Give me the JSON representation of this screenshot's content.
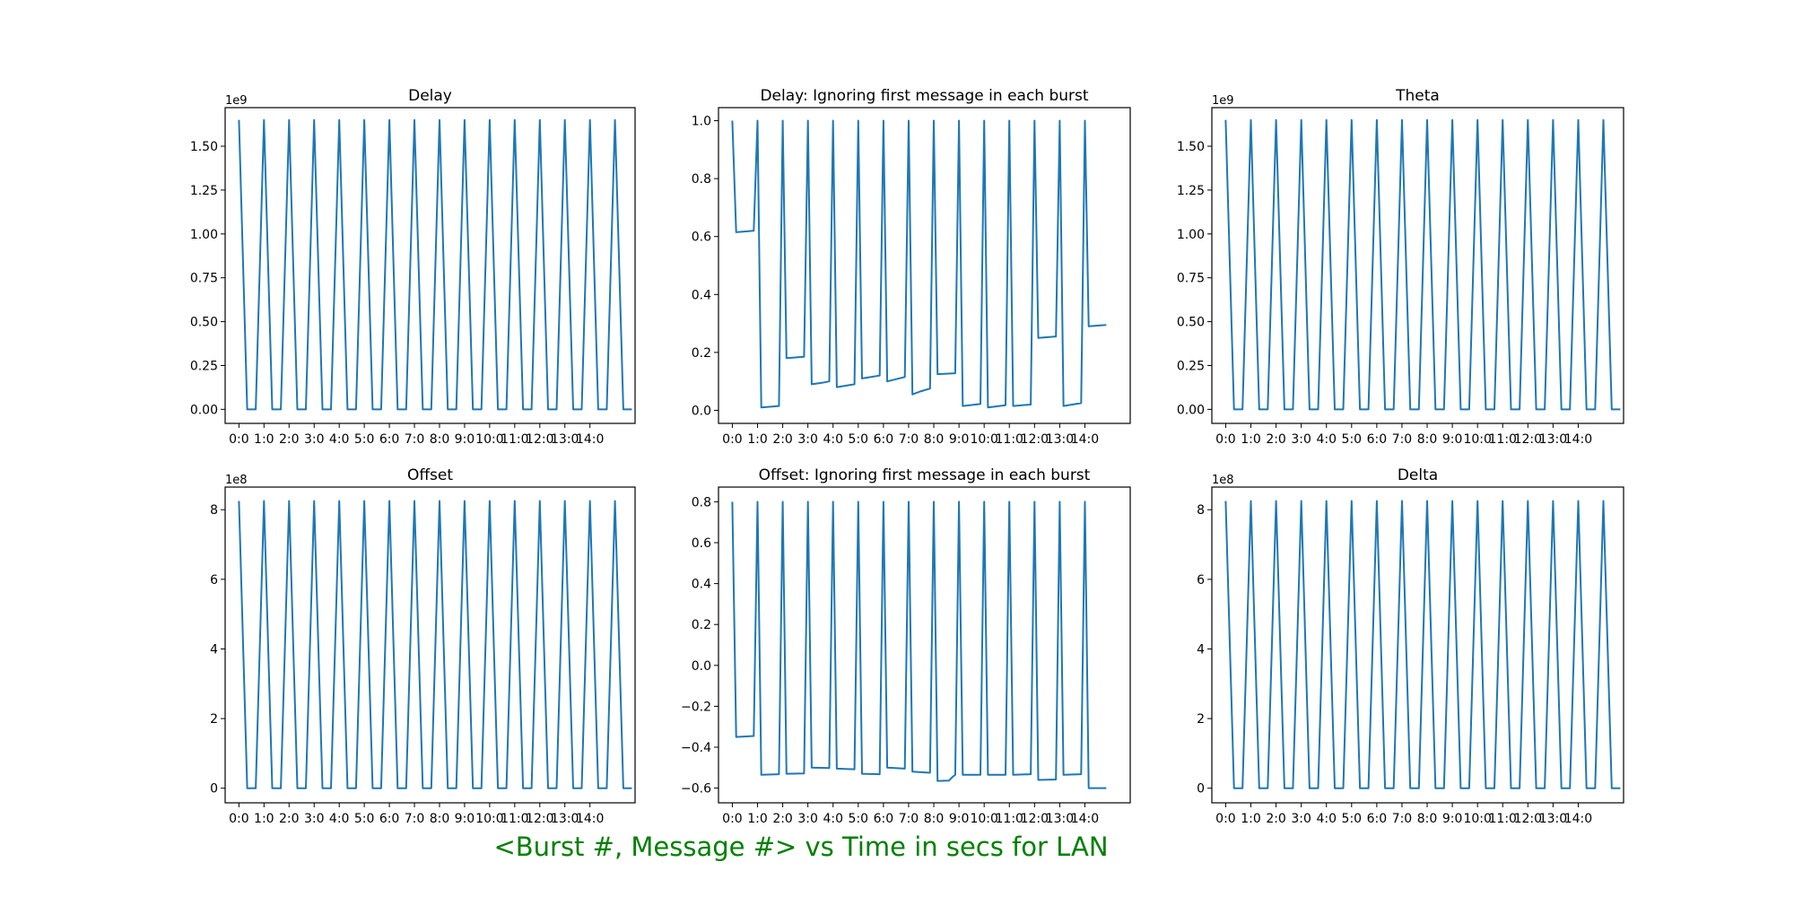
{
  "figure": {
    "suptitle": "<Burst #, Message #> vs Time in secs for LAN",
    "suptitle_color": "#008000",
    "line_color": "#1f77b4"
  },
  "chart_data": [
    {
      "type": "line",
      "title": "Delay",
      "offset_text": "1e9",
      "x_tick_labels": [
        "0:0",
        "1:0",
        "2:0",
        "3:0",
        "4:0",
        "5:0",
        "6:0",
        "7:0",
        "8:0",
        "9:0",
        "10:0",
        "11:0",
        "12:0",
        "13:0",
        "14:0"
      ],
      "y_ticks": [
        0.0,
        0.25,
        0.5,
        0.75,
        1.0,
        1.25,
        1.5
      ],
      "y_tick_labels": [
        "0.00",
        "0.25",
        "0.50",
        "0.75",
        "1.00",
        "1.25",
        "1.50"
      ],
      "ylim": [
        -0.08,
        1.72
      ],
      "xlim": [
        -0.55,
        15.8
      ],
      "x": [
        0,
        0.33,
        0.67,
        1,
        1.33,
        1.67,
        2,
        2.33,
        2.67,
        3,
        3.33,
        3.67,
        4,
        4.33,
        4.67,
        5,
        5.33,
        5.67,
        6,
        6.33,
        6.67,
        7,
        7.33,
        7.67,
        8,
        8.33,
        8.67,
        9,
        9.33,
        9.67,
        10,
        10.33,
        10.67,
        11,
        11.33,
        11.67,
        12,
        12.33,
        12.67,
        13,
        13.33,
        13.67,
        14,
        14.33,
        14.67,
        15,
        15.33,
        15.67
      ],
      "y": [
        1.65,
        0,
        0,
        1.65,
        0,
        0,
        1.65,
        0,
        0,
        1.65,
        0,
        0,
        1.65,
        0,
        0,
        1.65,
        0,
        0,
        1.65,
        0,
        0,
        1.65,
        0,
        0,
        1.65,
        0,
        0,
        1.65,
        0,
        0,
        1.65,
        0,
        0,
        1.65,
        0,
        0,
        1.65,
        0,
        0,
        1.65,
        0,
        0,
        1.65,
        0,
        0,
        1.65,
        0,
        0
      ]
    },
    {
      "type": "line",
      "title": "Delay: Ignoring first message in each burst",
      "offset_text": "",
      "x_tick_labels": [
        "0:0",
        "1:0",
        "2:0",
        "3:0",
        "4:0",
        "5:0",
        "6:0",
        "7:0",
        "8:0",
        "9:0",
        "10:0",
        "11:0",
        "12:0",
        "13:0",
        "14:0"
      ],
      "y_ticks": [
        0.0,
        0.2,
        0.4,
        0.6,
        0.8,
        1.0
      ],
      "y_tick_labels": [
        "0.0",
        "0.2",
        "0.4",
        "0.6",
        "0.8",
        "1.0"
      ],
      "ylim": [
        -0.045,
        1.045
      ],
      "xlim": [
        -0.55,
        15.8
      ],
      "x": [
        0,
        0.15,
        0.85,
        1,
        1.15,
        1.85,
        2,
        2.15,
        2.85,
        3,
        3.15,
        3.55,
        3.85,
        4,
        4.15,
        4.85,
        5,
        5.15,
        5.85,
        6,
        6.15,
        6.85,
        7,
        7.15,
        7.45,
        7.85,
        8,
        8.15,
        8.85,
        9,
        9.15,
        9.85,
        10,
        10.15,
        10.85,
        11,
        11.15,
        11.85,
        12,
        12.15,
        12.85,
        13,
        13.15,
        13.85,
        14,
        14.15,
        14.85
      ],
      "y": [
        1.0,
        0.615,
        0.62,
        1.0,
        0.01,
        0.015,
        1.0,
        0.18,
        0.185,
        1.0,
        0.09,
        0.095,
        0.1,
        1.0,
        0.08,
        0.09,
        1.0,
        0.11,
        0.12,
        1.0,
        0.1,
        0.115,
        1.0,
        0.055,
        0.065,
        0.075,
        1.0,
        0.125,
        0.128,
        1.0,
        0.015,
        0.022,
        1.0,
        0.01,
        0.018,
        1.0,
        0.015,
        0.02,
        1.0,
        0.25,
        0.255,
        1.0,
        0.015,
        0.025,
        1.0,
        0.29,
        0.295
      ]
    },
    {
      "type": "line",
      "title": "Theta",
      "offset_text": "1e9",
      "x_tick_labels": [
        "0:0",
        "1:0",
        "2:0",
        "3:0",
        "4:0",
        "5:0",
        "6:0",
        "7:0",
        "8:0",
        "9:0",
        "10:0",
        "11:0",
        "12:0",
        "13:0",
        "14:0"
      ],
      "y_ticks": [
        0.0,
        0.25,
        0.5,
        0.75,
        1.0,
        1.25,
        1.5
      ],
      "y_tick_labels": [
        "0.00",
        "0.25",
        "0.50",
        "0.75",
        "1.00",
        "1.25",
        "1.50"
      ],
      "ylim": [
        -0.08,
        1.72
      ],
      "xlim": [
        -0.55,
        15.8
      ],
      "x": [
        0,
        0.33,
        0.67,
        1,
        1.33,
        1.67,
        2,
        2.33,
        2.67,
        3,
        3.33,
        3.67,
        4,
        4.33,
        4.67,
        5,
        5.33,
        5.67,
        6,
        6.33,
        6.67,
        7,
        7.33,
        7.67,
        8,
        8.33,
        8.67,
        9,
        9.33,
        9.67,
        10,
        10.33,
        10.67,
        11,
        11.33,
        11.67,
        12,
        12.33,
        12.67,
        13,
        13.33,
        13.67,
        14,
        14.33,
        14.67,
        15,
        15.33,
        15.67
      ],
      "y": [
        1.65,
        0,
        0,
        1.65,
        0,
        0,
        1.65,
        0,
        0,
        1.65,
        0,
        0,
        1.65,
        0,
        0,
        1.65,
        0,
        0,
        1.65,
        0,
        0,
        1.65,
        0,
        0,
        1.65,
        0,
        0,
        1.65,
        0,
        0,
        1.65,
        0,
        0,
        1.65,
        0,
        0,
        1.65,
        0,
        0,
        1.65,
        0,
        0,
        1.65,
        0,
        0,
        1.65,
        0,
        0
      ]
    },
    {
      "type": "line",
      "title": "Offset",
      "offset_text": "1e8",
      "x_tick_labels": [
        "0:0",
        "1:0",
        "2:0",
        "3:0",
        "4:0",
        "5:0",
        "6:0",
        "7:0",
        "8:0",
        "9:0",
        "10:0",
        "11:0",
        "12:0",
        "13:0",
        "14:0"
      ],
      "y_ticks": [
        0,
        2,
        4,
        6,
        8
      ],
      "y_tick_labels": [
        "0",
        "2",
        "4",
        "6",
        "8"
      ],
      "ylim": [
        -0.42,
        8.65
      ],
      "xlim": [
        -0.55,
        15.8
      ],
      "x": [
        0,
        0.33,
        0.67,
        1,
        1.33,
        1.67,
        2,
        2.33,
        2.67,
        3,
        3.33,
        3.67,
        4,
        4.33,
        4.67,
        5,
        5.33,
        5.67,
        6,
        6.33,
        6.67,
        7,
        7.33,
        7.67,
        8,
        8.33,
        8.67,
        9,
        9.33,
        9.67,
        10,
        10.33,
        10.67,
        11,
        11.33,
        11.67,
        12,
        12.33,
        12.67,
        13,
        13.33,
        13.67,
        14,
        14.33,
        14.67,
        15,
        15.33,
        15.67
      ],
      "y": [
        8.25,
        0,
        0,
        8.25,
        0,
        0,
        8.25,
        0,
        0,
        8.25,
        0,
        0,
        8.25,
        0,
        0,
        8.25,
        0,
        0,
        8.25,
        0,
        0,
        8.25,
        0,
        0,
        8.25,
        0,
        0,
        8.25,
        0,
        0,
        8.25,
        0,
        0,
        8.25,
        0,
        0,
        8.25,
        0,
        0,
        8.25,
        0,
        0,
        8.25,
        0,
        0,
        8.25,
        0,
        0
      ]
    },
    {
      "type": "line",
      "title": "Offset: Ignoring first message in each burst",
      "offset_text": "",
      "x_tick_labels": [
        "0:0",
        "1:0",
        "2:0",
        "3:0",
        "4:0",
        "5:0",
        "6:0",
        "7:0",
        "8:0",
        "9:0",
        "10:0",
        "11:0",
        "12:0",
        "13:0",
        "14:0"
      ],
      "y_ticks": [
        -0.6,
        -0.4,
        -0.2,
        0.0,
        0.2,
        0.4,
        0.6,
        0.8
      ],
      "y_tick_labels": [
        "−0.6",
        "−0.4",
        "−0.2",
        "0.0",
        "0.2",
        "0.4",
        "0.6",
        "0.8"
      ],
      "ylim": [
        -0.672,
        0.872
      ],
      "xlim": [
        -0.55,
        15.8
      ],
      "x": [
        0,
        0.15,
        0.85,
        1,
        1.15,
        1.85,
        2,
        2.15,
        2.85,
        3,
        3.15,
        3.85,
        4,
        4.15,
        4.85,
        5,
        5.15,
        5.85,
        6,
        6.15,
        6.85,
        7,
        7.15,
        7.85,
        8,
        8.15,
        8.6,
        8.75,
        8.85,
        9,
        9.15,
        9.85,
        10,
        10.15,
        10.85,
        11,
        11.15,
        11.85,
        12,
        12.15,
        12.85,
        13,
        13.15,
        13.85,
        14,
        14.15,
        14.85
      ],
      "y": [
        0.8,
        -0.35,
        -0.345,
        0.8,
        -0.535,
        -0.532,
        0.8,
        -0.53,
        -0.528,
        0.8,
        -0.5,
        -0.502,
        0.8,
        -0.505,
        -0.508,
        0.8,
        -0.53,
        -0.532,
        0.8,
        -0.5,
        -0.505,
        0.8,
        -0.52,
        -0.525,
        0.8,
        -0.565,
        -0.563,
        -0.545,
        -0.535,
        0.8,
        -0.535,
        -0.535,
        0.8,
        -0.535,
        -0.535,
        0.8,
        -0.535,
        -0.532,
        0.8,
        -0.56,
        -0.558,
        0.8,
        -0.535,
        -0.532,
        0.8,
        -0.6,
        -0.6
      ]
    },
    {
      "type": "line",
      "title": "Delta",
      "offset_text": "1e8",
      "x_tick_labels": [
        "0:0",
        "1:0",
        "2:0",
        "3:0",
        "4:0",
        "5:0",
        "6:0",
        "7:0",
        "8:0",
        "9:0",
        "10:0",
        "11:0",
        "12:0",
        "13:0",
        "14:0"
      ],
      "y_ticks": [
        0,
        2,
        4,
        6,
        8
      ],
      "y_tick_labels": [
        "0",
        "2",
        "4",
        "6",
        "8"
      ],
      "ylim": [
        -0.42,
        8.65
      ],
      "xlim": [
        -0.55,
        15.8
      ],
      "x": [
        0,
        0.33,
        0.67,
        1,
        1.33,
        1.67,
        2,
        2.33,
        2.67,
        3,
        3.33,
        3.67,
        4,
        4.33,
        4.67,
        5,
        5.33,
        5.67,
        6,
        6.33,
        6.67,
        7,
        7.33,
        7.67,
        8,
        8.33,
        8.67,
        9,
        9.33,
        9.67,
        10,
        10.33,
        10.67,
        11,
        11.33,
        11.67,
        12,
        12.33,
        12.67,
        13,
        13.33,
        13.67,
        14,
        14.33,
        14.67,
        15,
        15.33,
        15.67
      ],
      "y": [
        8.25,
        0,
        0,
        8.25,
        0,
        0,
        8.25,
        0,
        0,
        8.25,
        0,
        0,
        8.25,
        0,
        0,
        8.25,
        0,
        0,
        8.25,
        0,
        0,
        8.25,
        0,
        0,
        8.25,
        0,
        0,
        8.25,
        0,
        0,
        8.25,
        0,
        0,
        8.25,
        0,
        0,
        8.25,
        0,
        0,
        8.25,
        0,
        0,
        8.25,
        0,
        0,
        8.25,
        0,
        0
      ]
    }
  ]
}
